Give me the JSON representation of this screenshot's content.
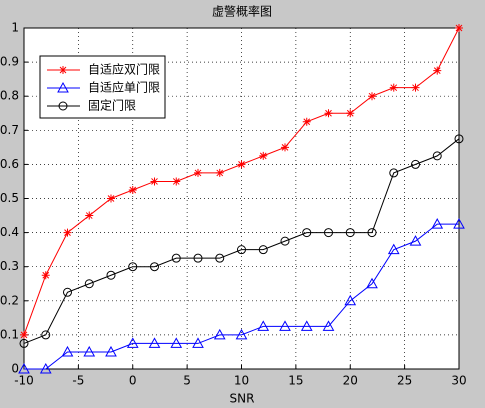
{
  "chart_data": {
    "type": "line",
    "title": "虚警概率图",
    "x_label": "SNR",
    "x": [
      -10,
      -8,
      -6,
      -4,
      -2,
      0,
      2,
      4,
      6,
      8,
      10,
      12,
      14,
      16,
      18,
      20,
      22,
      24,
      26,
      28,
      30
    ],
    "series": [
      {
        "name": "自适应双门限",
        "color": "#ff0000",
        "marker": "*",
        "values": [
          0.1,
          0.275,
          0.4,
          0.45,
          0.5,
          0.525,
          0.55,
          0.55,
          0.575,
          0.575,
          0.6,
          0.625,
          0.65,
          0.725,
          0.75,
          0.75,
          0.8,
          0.825,
          0.825,
          0.875,
          1.0
        ]
      },
      {
        "name": "自适应单门限",
        "color": "#0000ff",
        "marker": "^",
        "values": [
          0,
          0,
          0.05,
          0.05,
          0.05,
          0.075,
          0.075,
          0.075,
          0.075,
          0.1,
          0.1,
          0.125,
          0.125,
          0.125,
          0.125,
          0.2,
          0.25,
          0.35,
          0.375,
          0.425,
          0.425
        ]
      },
      {
        "name": "固定门限",
        "color": "#000000",
        "marker": "o",
        "values": [
          0.075,
          0.1,
          0.225,
          0.25,
          0.275,
          0.3,
          0.3,
          0.325,
          0.325,
          0.325,
          0.35,
          0.35,
          0.375,
          0.4,
          0.4,
          0.4,
          0.4,
          0.575,
          0.6,
          0.625,
          0.675
        ]
      }
    ],
    "xlim": [
      -10,
      30
    ],
    "xticks": [
      -10,
      -5,
      0,
      5,
      10,
      15,
      20,
      25,
      30
    ],
    "ylim": [
      0,
      1
    ],
    "yticks": [
      0,
      0.1,
      0.2,
      0.3,
      0.4,
      0.5,
      0.6,
      0.7,
      0.8,
      0.9,
      1
    ],
    "grid": true,
    "legend": "upper left"
  }
}
